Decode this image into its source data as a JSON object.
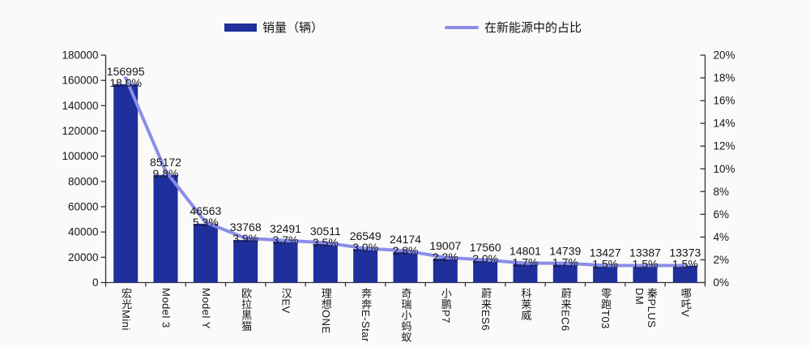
{
  "legend": {
    "bar_label": "销量（辆）",
    "line_label": "在新能源中的占比"
  },
  "colors": {
    "bar": "#1F2F9C",
    "line": "#8A8DE8",
    "axis": "#333333",
    "text": "#161616",
    "background": "#fafafa"
  },
  "chart_data": {
    "type": "bar",
    "combo": "bar+line",
    "title": "",
    "xlabel": "",
    "ylabel_left": "销量（辆）",
    "ylabel_right": "在新能源中的占比",
    "grid": false,
    "legend_position": "top",
    "categories": [
      "宏光Mini",
      "Model 3",
      "Model Y",
      "欧拉黑猫",
      "汉EV",
      "理想ONE",
      "奔奔E-Star",
      "奇瑞小蚂蚁",
      "小鹏P7",
      "蔚来ES6",
      "科莱威",
      "蔚来EC6",
      "零跑T03",
      "秦PLUS DM",
      "哪吒V"
    ],
    "series": [
      {
        "name": "销量（辆）",
        "type": "bar",
        "axis": "left",
        "values": [
          156995,
          85172,
          46563,
          33768,
          32491,
          30511,
          26549,
          24174,
          19007,
          17560,
          14801,
          14739,
          13427,
          13387,
          13373
        ],
        "value_labels": [
          "156995",
          "85172",
          "46563",
          "33768",
          "32491",
          "30511",
          "26549",
          "24174",
          "19007",
          "17560",
          "14801",
          "14739",
          "13427",
          "13387",
          "13373"
        ]
      },
      {
        "name": "在新能源中的占比",
        "type": "line",
        "axis": "right",
        "values_percent": [
          18.0,
          9.8,
          5.3,
          3.9,
          3.7,
          3.5,
          3.0,
          2.8,
          2.2,
          2.0,
          1.7,
          1.7,
          1.5,
          1.5,
          1.5
        ],
        "point_labels": [
          "18.0%",
          "9.8%",
          "5.3%",
          "3.9%",
          "3.7%",
          "3.5%",
          "3.0%",
          "2.8%",
          "2.2%",
          "2.0%",
          "1.7%",
          "1.7%",
          "1.5%",
          "1.5%",
          "1.5%"
        ]
      }
    ],
    "left_axis": {
      "min": 0,
      "max": 180000,
      "step": 20000,
      "tick_labels": [
        "0",
        "20000",
        "40000",
        "60000",
        "80000",
        "100000",
        "120000",
        "140000",
        "160000",
        "180000"
      ]
    },
    "right_axis": {
      "min": 0,
      "max": 20,
      "step": 2,
      "tick_labels": [
        "0%",
        "2%",
        "4%",
        "6%",
        "8%",
        "10%",
        "12%",
        "14%",
        "16%",
        "18%",
        "20%"
      ]
    }
  }
}
